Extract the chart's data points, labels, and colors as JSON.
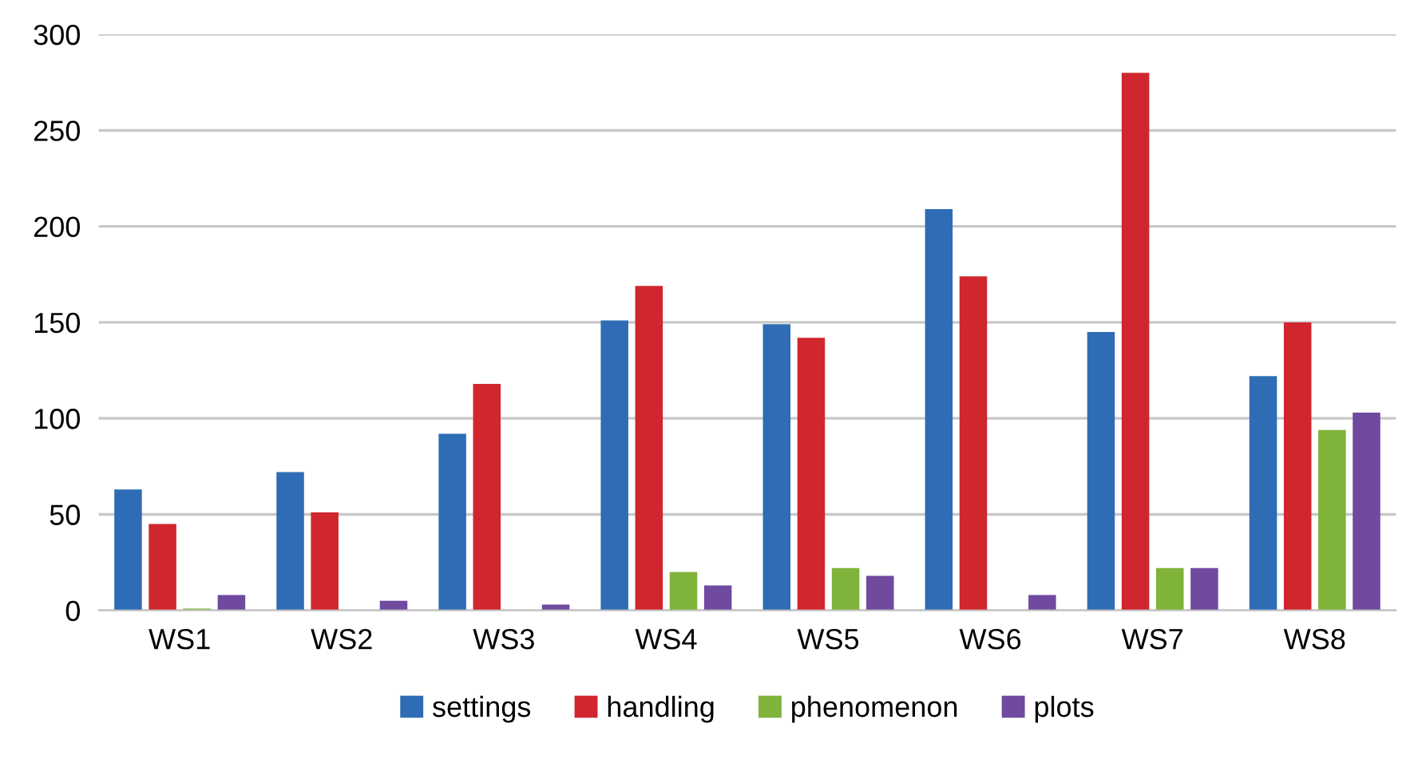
{
  "chart_data": {
    "type": "bar",
    "categories": [
      "WS1",
      "WS2",
      "WS3",
      "WS4",
      "WS5",
      "WS6",
      "WS7",
      "WS8"
    ],
    "series": [
      {
        "name": "settings",
        "color": "#2e6db5",
        "values": [
          63,
          72,
          92,
          151,
          149,
          209,
          145,
          122
        ]
      },
      {
        "name": "handling",
        "color": "#d0262e",
        "values": [
          45,
          51,
          118,
          169,
          142,
          174,
          280,
          150
        ]
      },
      {
        "name": "phenomenon",
        "color": "#7fb33a",
        "values": [
          1,
          0,
          0,
          20,
          22,
          0,
          22,
          94
        ]
      },
      {
        "name": "plots",
        "color": "#6f4a9e",
        "values": [
          8,
          5,
          3,
          13,
          18,
          8,
          22,
          103
        ]
      }
    ],
    "ylim": [
      0,
      300
    ],
    "yticks": [
      0,
      50,
      100,
      150,
      200,
      250,
      300
    ],
    "grid": "y",
    "legend": "bottom"
  }
}
